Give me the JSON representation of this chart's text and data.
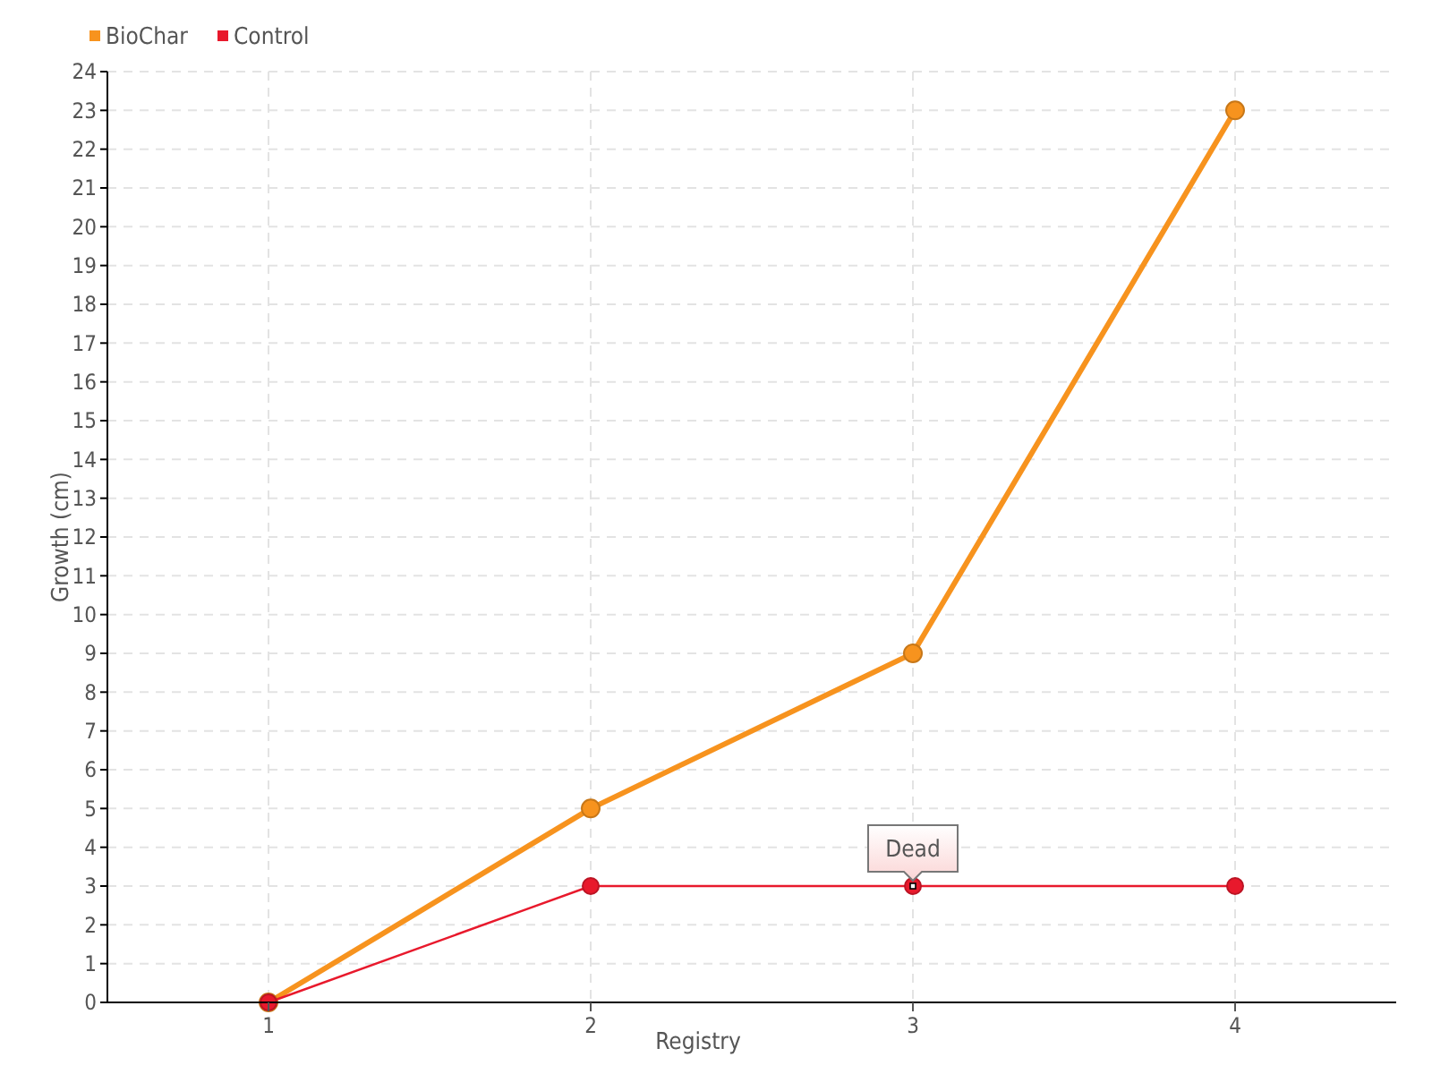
{
  "chart_data": {
    "type": "line",
    "xlabel": "Registry",
    "ylabel": "Growth (cm)",
    "x": [
      1,
      2,
      3,
      4
    ],
    "xlim": [
      0.5,
      4.5
    ],
    "xticks": [
      1,
      2,
      3,
      4
    ],
    "ylim": [
      0,
      24
    ],
    "yticks": [
      0,
      1,
      2,
      3,
      4,
      5,
      6,
      7,
      8,
      9,
      10,
      11,
      12,
      13,
      14,
      15,
      16,
      17,
      18,
      19,
      20,
      21,
      22,
      23,
      24
    ],
    "grid": true,
    "legend": "top left",
    "marker": "circle",
    "series": [
      {
        "name": "BioChar",
        "color": "#f7931e",
        "values": [
          0,
          5,
          9,
          23
        ]
      },
      {
        "name": "Control",
        "color": "#e8192c",
        "values": [
          0,
          3,
          3,
          3
        ]
      }
    ],
    "annotations": [
      {
        "text": "Dead",
        "x": 3,
        "y": 3
      }
    ]
  }
}
